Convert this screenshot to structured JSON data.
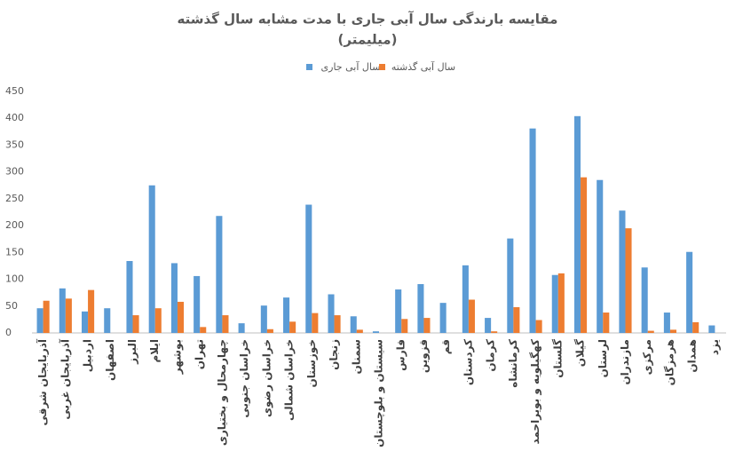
{
  "chart_data": {
    "type": "bar",
    "title": "مقایسه بارندگی سال آبی جاری با مدت مشابه سال گذشته",
    "subtitle": "(میلیمتر)",
    "categories": [
      "آذربایجان شرقی",
      "آذربایجان غربی",
      "اردبیل",
      "اصفهان",
      "البرز",
      "ایلام",
      "بوشهر",
      "تهران",
      "چهارمحال و بختیاری",
      "خراسان جنوبی",
      "خراسان رضوی",
      "خراسان شمالی",
      "خوزستان",
      "زنجان",
      "سمنان",
      "سیستان و بلوچستان",
      "فارس",
      "قزوین",
      "قم",
      "کردستان",
      "کرمان",
      "کرمانشاه",
      "کهگیلویه و بویراحمد",
      "گلستان",
      "گیلان",
      "لرستان",
      "مازندران",
      "مرکزی",
      "هرمزگان",
      "همدان",
      "یزد"
    ],
    "series": [
      {
        "name": "سال آبی جاری",
        "color": "#5b9bd5",
        "values": [
          46,
          83,
          40,
          46,
          134,
          275,
          130,
          106,
          218,
          18,
          51,
          66,
          239,
          72,
          31,
          3,
          81,
          91,
          56,
          126,
          28,
          176,
          381,
          108,
          404,
          285,
          228,
          122,
          38,
          151,
          14
        ]
      },
      {
        "name": "سال آبی گذشته",
        "color": "#ed7d31",
        "values": [
          60,
          64,
          80,
          0,
          33,
          46,
          58,
          11,
          33,
          0,
          7,
          21,
          37,
          33,
          6,
          0,
          26,
          28,
          0,
          62,
          3,
          48,
          24,
          111,
          290,
          38,
          195,
          4,
          6,
          20,
          0
        ]
      }
    ],
    "ylim": [
      0,
      450
    ],
    "yticks": [
      0,
      50,
      100,
      150,
      200,
      250,
      300,
      350,
      400,
      450
    ],
    "grid": false,
    "legend": "top"
  }
}
